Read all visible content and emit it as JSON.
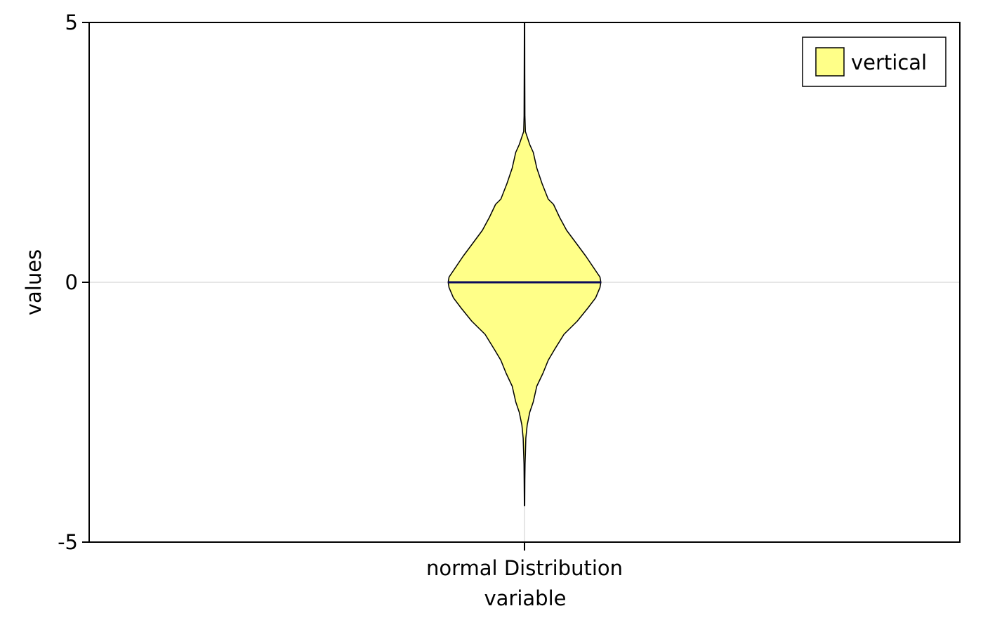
{
  "chart_data": {
    "type": "violin",
    "xlabel": "variable",
    "ylabel": "values",
    "ylim": [
      -5,
      5
    ],
    "yticks": [
      5,
      0,
      -5
    ],
    "ytick_labels": [
      "5",
      "0",
      "-5"
    ],
    "categories": [
      "normal Distribution"
    ],
    "series": [
      {
        "name": "vertical",
        "category": "normal Distribution",
        "fill_color": "#ffff88",
        "edge_color": "#000000",
        "median": 0.0,
        "median_color": "#0a0a5a",
        "min": -4.3,
        "max": 5.0,
        "density_profile": {
          "y": [
            5.0,
            4.0,
            3.2,
            2.9,
            2.65,
            2.5,
            2.2,
            1.9,
            1.6,
            1.5,
            1.25,
            1.0,
            0.75,
            0.5,
            0.25,
            0.1,
            0.0,
            -0.1,
            -0.3,
            -0.5,
            -0.75,
            -1.0,
            -1.3,
            -1.5,
            -1.75,
            -2.0,
            -2.3,
            -2.5,
            -2.75,
            -3.0,
            -3.3,
            -3.5,
            -3.8,
            -4.3
          ],
          "halfwidth": [
            0.002,
            0.003,
            0.005,
            0.01,
            0.06,
            0.1,
            0.14,
            0.2,
            0.27,
            0.33,
            0.4,
            0.48,
            0.59,
            0.7,
            0.8,
            0.86,
            0.87,
            0.86,
            0.81,
            0.72,
            0.6,
            0.45,
            0.34,
            0.27,
            0.21,
            0.14,
            0.1,
            0.06,
            0.03,
            0.015,
            0.01,
            0.006,
            0.004,
            0.002
          ]
        }
      }
    ],
    "legend": {
      "position": "top-right",
      "entries": [
        "vertical"
      ]
    },
    "grid": {
      "horizontal_at": [
        0
      ],
      "vertical_at_categories": true
    }
  }
}
